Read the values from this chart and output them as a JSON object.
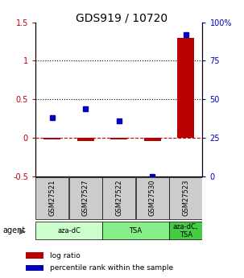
{
  "title": "GDS919 / 10720",
  "samples": [
    "GSM27521",
    "GSM27527",
    "GSM27522",
    "GSM27530",
    "GSM27523"
  ],
  "log_ratios": [
    -0.02,
    -0.04,
    -0.02,
    -0.04,
    1.3
  ],
  "percentile_ranks": [
    38,
    44,
    36,
    0,
    92
  ],
  "bar_color": "#bb0000",
  "dot_color": "#0000bb",
  "ylim_left": [
    -0.5,
    1.5
  ],
  "ylim_right": [
    0,
    100
  ],
  "yticks_left": [
    -0.5,
    0.0,
    0.5,
    1.0,
    1.5
  ],
  "ytick_labels_left": [
    "-0.5",
    "0",
    "0.5",
    "1",
    "1.5"
  ],
  "yticks_right": [
    0,
    25,
    50,
    75,
    100
  ],
  "ytick_labels_right": [
    "0",
    "25",
    "50",
    "75",
    "100%"
  ],
  "hlines": [
    0.0,
    0.5,
    1.0
  ],
  "hline_styles": [
    "--",
    ":",
    ":"
  ],
  "hline_colors": [
    "#cc0000",
    "#000000",
    "#000000"
  ],
  "agent_groups": [
    {
      "label": "aza-dC",
      "start": 0,
      "end": 2,
      "color": "#ccffcc"
    },
    {
      "label": "TSA",
      "start": 2,
      "end": 4,
      "color": "#88ee88"
    },
    {
      "label": "aza-dC,\nTSA",
      "start": 4,
      "end": 5,
      "color": "#44cc44"
    }
  ],
  "legend_items": [
    {
      "color": "#bb0000",
      "label": "log ratio"
    },
    {
      "color": "#0000bb",
      "label": "percentile rank within the sample"
    }
  ],
  "background_color": "#ffffff",
  "sample_box_color": "#cccccc",
  "title_fontsize": 10,
  "tick_fontsize": 7,
  "legend_fontsize": 6.5
}
